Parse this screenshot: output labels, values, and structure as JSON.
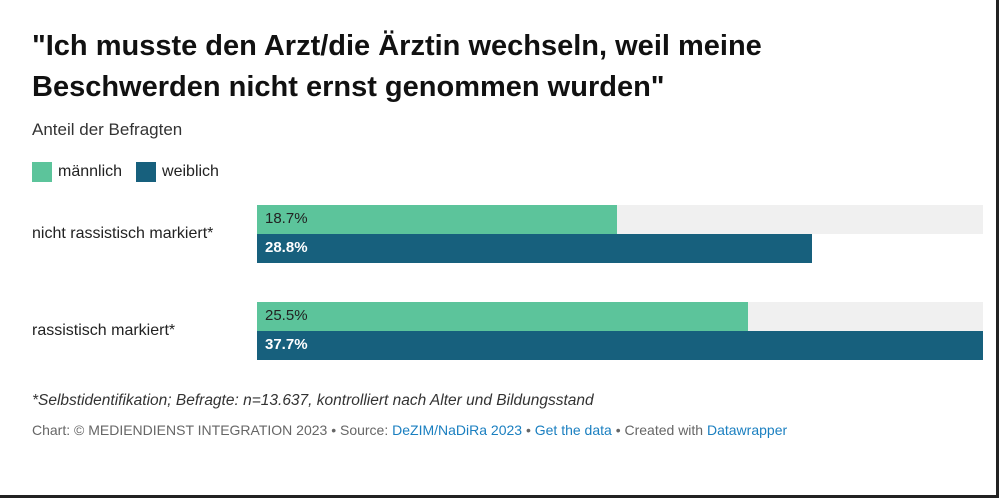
{
  "title": "\"Ich musste den Arzt/die Ärztin wechseln, weil meine Beschwerden nicht ernst genommen wurden\"",
  "subtitle": "Anteil der Befragten",
  "colors": {
    "maennlich": "#5cc49b",
    "weiblich": "#17607d",
    "track": "#f0f0f0"
  },
  "chart_data": {
    "type": "bar",
    "orientation": "horizontal",
    "categories": [
      "nicht rassistisch markiert*",
      "rassistisch markiert*"
    ],
    "series": [
      {
        "name": "männlich",
        "values": [
          18.7,
          25.5
        ],
        "labels": [
          "18.7%",
          "25.5%"
        ]
      },
      {
        "name": "weiblich",
        "values": [
          28.8,
          37.7
        ],
        "labels": [
          "28.8%",
          "37.7%"
        ]
      }
    ],
    "xlim": [
      0,
      37.7
    ],
    "legend": "top-left"
  },
  "footer": {
    "note": "*Selbstidentifikation; Befragte: n=13.637, kontrolliert nach Alter und Bildungsstand",
    "credit_prefix": "Chart: © MEDIENDIENST INTEGRATION 2023 • Source: ",
    "source_link": "DeZIM/NaDiRa 2023",
    "sep1": " • ",
    "get_data": "Get the data",
    "sep2": " • Created with ",
    "datawrapper": "Datawrapper"
  }
}
